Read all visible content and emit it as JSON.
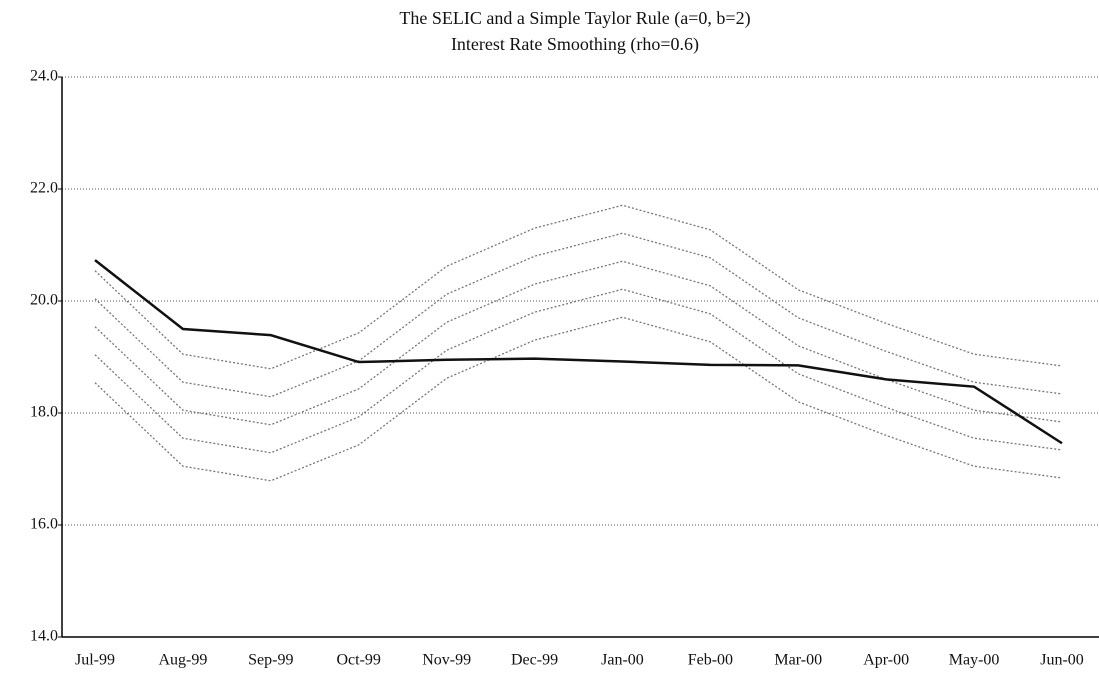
{
  "chart_data": {
    "type": "line",
    "title": "The SELIC and a Simple Taylor Rule (a=0, b=2)",
    "subtitle": "Interest Rate Smoothing (rho=0.6)",
    "categories": [
      "Jul-99",
      "Aug-99",
      "Sep-99",
      "Oct-99",
      "Nov-99",
      "Dec-99",
      "Jan-00",
      "Feb-00",
      "Mar-00",
      "Apr-00",
      "May-00",
      "Jun-00"
    ],
    "series": [
      {
        "color": "#777777",
        "dashed": true,
        "values": [
          20.54,
          19.05,
          18.79,
          19.43,
          20.62,
          21.3,
          21.71,
          21.27,
          20.2,
          19.6,
          19.05,
          18.84
        ]
      },
      {
        "color": "#777777",
        "dashed": true,
        "values": [
          20.04,
          18.55,
          18.29,
          18.93,
          20.12,
          20.8,
          21.21,
          20.77,
          19.7,
          19.1,
          18.55,
          18.34
        ]
      },
      {
        "color": "#777777",
        "dashed": true,
        "values": [
          19.54,
          18.05,
          17.79,
          18.43,
          19.62,
          20.3,
          20.71,
          20.27,
          19.2,
          18.6,
          18.05,
          17.84
        ]
      },
      {
        "color": "#777777",
        "dashed": true,
        "values": [
          19.04,
          17.55,
          17.29,
          17.93,
          19.12,
          19.8,
          20.21,
          19.77,
          18.7,
          18.1,
          17.55,
          17.34
        ]
      },
      {
        "color": "#777777",
        "dashed": true,
        "values": [
          18.54,
          17.05,
          16.79,
          17.43,
          18.62,
          19.3,
          19.71,
          19.27,
          18.2,
          17.6,
          17.05,
          16.84
        ]
      },
      {
        "color": "#111111",
        "dashed": false,
        "values": [
          20.73,
          19.5,
          19.39,
          18.91,
          18.95,
          18.97,
          18.92,
          18.86,
          18.85,
          18.6,
          18.47,
          17.46
        ]
      }
    ],
    "ylim": [
      14,
      24
    ],
    "yticks": [
      {
        "value": 14,
        "label": "14.0"
      },
      {
        "value": 16,
        "label": "16.0"
      },
      {
        "value": 18,
        "label": "18.0"
      },
      {
        "value": 20,
        "label": "20.0"
      },
      {
        "value": 22,
        "label": "22.0"
      },
      {
        "value": 24,
        "label": "24.0"
      }
    ],
    "grid": true
  }
}
